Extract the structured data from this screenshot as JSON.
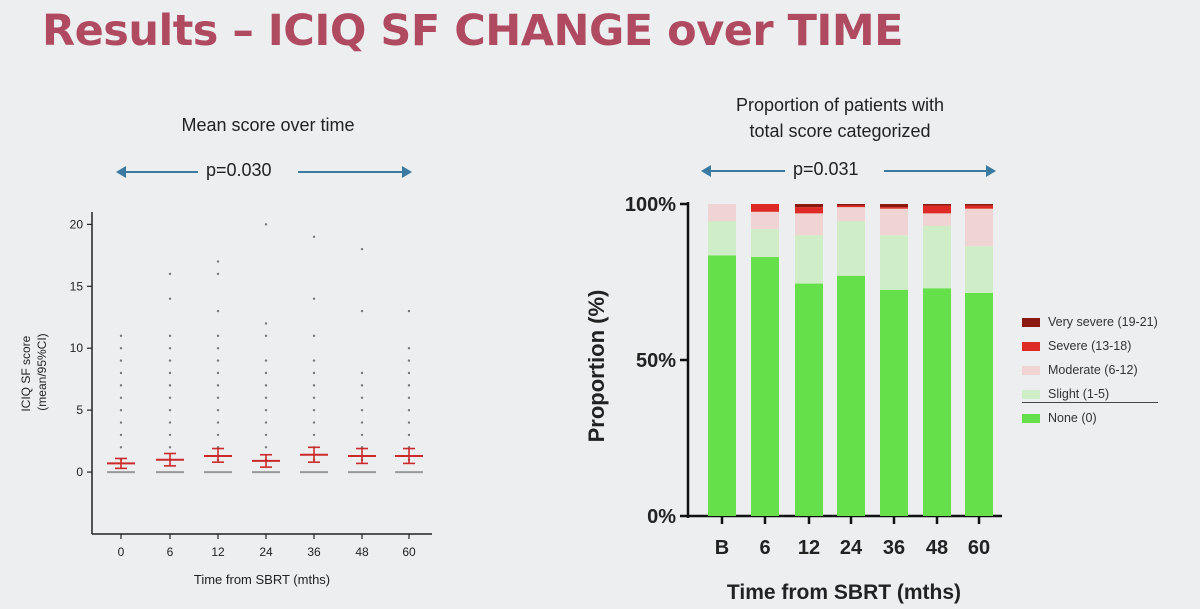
{
  "slide": {
    "title": "Results – ICIQ SF CHANGE over TIME"
  },
  "colors": {
    "title": "#b04a60",
    "arrow": "#3a7aa0",
    "ci_marker": "#cc2a2a",
    "none": "#66e04a",
    "slight": "#cfeec8",
    "moderate": "#f0d4d4",
    "severe": "#dd2a24",
    "very_severe": "#8a1a10"
  },
  "chart_data": [
    {
      "type": "scatter",
      "title": "Mean score over time",
      "p_value": "p=0.030",
      "xlabel": "Time from SBRT (mths)",
      "ylabel_lines": [
        "ICIQ SF score",
        "(mean/95%CI)"
      ],
      "categories": [
        "0",
        "6",
        "12",
        "24",
        "36",
        "48",
        "60"
      ],
      "yticks": [
        "0",
        "5",
        "10",
        "15",
        "20"
      ],
      "ylim": [
        -5,
        21
      ],
      "mean": [
        0.7,
        1.0,
        1.3,
        0.9,
        1.4,
        1.3,
        1.3
      ],
      "ci_low": [
        0.3,
        0.5,
        0.8,
        0.4,
        0.8,
        0.7,
        0.7
      ],
      "ci_high": [
        1.1,
        1.5,
        1.9,
        1.4,
        2.0,
        1.9,
        1.9
      ],
      "median": [
        0,
        0,
        0,
        0,
        0,
        0,
        0
      ],
      "individual_scores": [
        [
          1,
          2,
          3,
          4,
          5,
          6,
          7,
          8,
          9,
          10,
          11
        ],
        [
          1,
          2,
          3,
          4,
          5,
          6,
          7,
          8,
          9,
          10,
          11,
          14,
          16
        ],
        [
          1,
          2,
          3,
          4,
          5,
          6,
          7,
          8,
          9,
          10,
          11,
          13,
          16,
          17
        ],
        [
          1,
          2,
          3,
          4,
          5,
          6,
          7,
          8,
          9,
          11,
          12,
          20
        ],
        [
          1,
          2,
          3,
          4,
          5,
          6,
          7,
          8,
          9,
          11,
          14,
          19
        ],
        [
          1,
          2,
          3,
          4,
          5,
          6,
          7,
          8,
          13,
          18
        ],
        [
          1,
          2,
          3,
          4,
          5,
          6,
          7,
          8,
          9,
          10,
          13
        ]
      ]
    },
    {
      "type": "bar",
      "stacked": true,
      "title_lines": [
        "Proportion of patients with",
        "total score categorized"
      ],
      "p_value": "p=0.031",
      "xlabel": "Time from SBRT (mths)",
      "ylabel": "Proportion (%)",
      "categories": [
        "B",
        "6",
        "12",
        "24",
        "36",
        "48",
        "60"
      ],
      "yticks": [
        "0%",
        "50%",
        "100%"
      ],
      "ylim": [
        0,
        100
      ],
      "series": [
        {
          "name": "None (0)",
          "color": "#66e04a",
          "values": [
            83.5,
            83,
            74.5,
            77,
            72.5,
            73,
            71.5
          ]
        },
        {
          "name": "Slight (1-5)",
          "color": "#cfeec8",
          "values": [
            11,
            9,
            15.5,
            17.5,
            17.5,
            20,
            15
          ]
        },
        {
          "name": "Moderate (6-12)",
          "color": "#f0d4d4",
          "values": [
            5.5,
            5.5,
            7,
            4.5,
            8.5,
            4,
            12
          ]
        },
        {
          "name": "Severe (13-18)",
          "color": "#dd2a24",
          "values": [
            0,
            2.5,
            2,
            0.5,
            0.5,
            2.5,
            1
          ]
        },
        {
          "name": "Very severe (19-21)",
          "color": "#8a1a10",
          "values": [
            0,
            0,
            1,
            0.5,
            1,
            0.5,
            0.5
          ]
        }
      ],
      "legend_order": [
        "Very severe (19-21)",
        "Severe (13-18)",
        "Moderate (6-12)",
        "Slight (1-5)",
        "None (0)"
      ]
    }
  ]
}
